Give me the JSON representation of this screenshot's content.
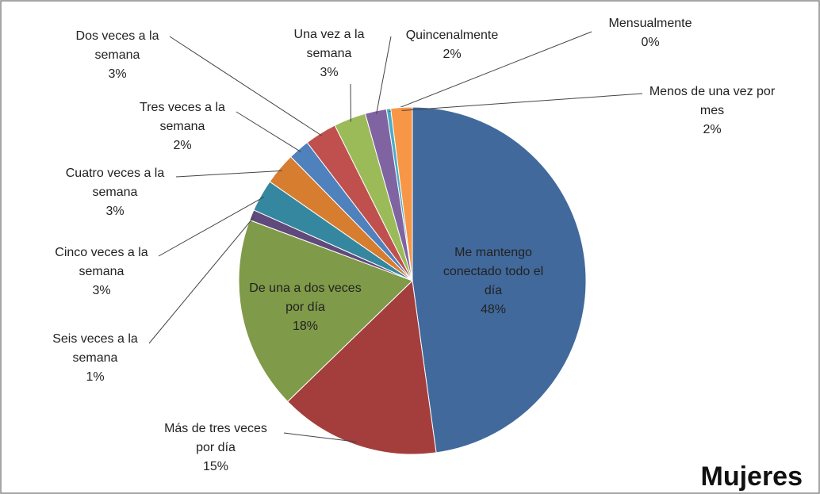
{
  "chart_data": {
    "type": "pie",
    "title": "Mujeres",
    "categories": [
      "Me mantengo conectado todo el día",
      "Más de tres veces por día",
      "De una a dos veces por día",
      "Seis veces a la semana",
      "Cinco veces a la semana",
      "Cuatro veces a la semana",
      "Tres veces a la semana",
      "Dos veces a la semana",
      "Una vez a la semana",
      "Quincenalmente",
      "Mensualmente",
      "Menos de una vez por mes"
    ],
    "values": [
      48,
      15,
      18,
      1,
      3,
      3,
      2,
      3,
      3,
      2,
      0.4,
      2
    ],
    "value_labels": [
      "48%",
      "15%",
      "18%",
      "1%",
      "3%",
      "3%",
      "2%",
      "3%",
      "3%",
      "2%",
      "0%",
      "2%"
    ],
    "colors": [
      "#41699c",
      "#a33e3c",
      "#7f9a48",
      "#5f4a7b",
      "#35879f",
      "#d77d30",
      "#4f81bd",
      "#c0504d",
      "#9bbb59",
      "#8064a2",
      "#4bacc6",
      "#f79646"
    ]
  }
}
